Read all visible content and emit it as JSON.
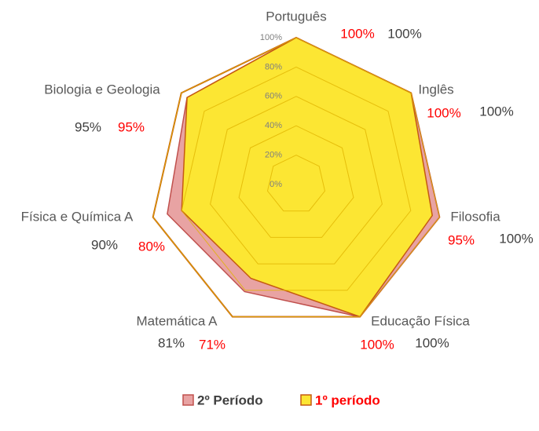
{
  "chart_data": {
    "type": "radar",
    "categories": [
      "Português",
      "Inglês",
      "Filosofia",
      "Educação Física",
      "Matemática A",
      "Física e Química A",
      "Biologia e Geologia"
    ],
    "series": [
      {
        "color": "#c55a11",
        "values": [
          100,
          100,
          100,
          100,
          100,
          100,
          100
        ]
      },
      {
        "name": "2º Período",
        "color": "#e8a3a3",
        "values": [
          100,
          100,
          100,
          100,
          81,
          90,
          95
        ],
        "value_labels": [
          "100%",
          "100%",
          "100%",
          "100%",
          "81%",
          "90%",
          "95%"
        ]
      },
      {
        "name": "1º período",
        "color": "#fce633",
        "values": [
          100,
          100,
          95,
          100,
          71,
          80,
          95
        ],
        "value_labels": [
          "100%",
          "100%",
          "95%",
          "100%",
          "71%",
          "80%",
          "95%"
        ]
      }
    ],
    "rlim": [
      0,
      100
    ],
    "rticks": [
      {
        "value": 0,
        "label": "0%"
      },
      {
        "value": 20,
        "label": "20%"
      },
      {
        "value": 40,
        "label": "40%"
      },
      {
        "value": 60,
        "label": "60%"
      },
      {
        "value": 80,
        "label": "80%"
      },
      {
        "value": 100,
        "label": "100%"
      }
    ],
    "grid": true,
    "legend": "bottom"
  }
}
